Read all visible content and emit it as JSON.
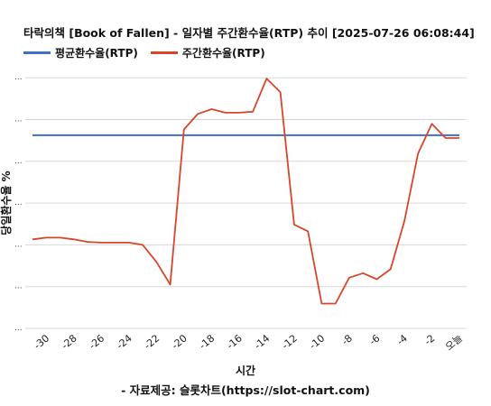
{
  "chart_data": {
    "type": "line",
    "title": "타락의책 [Book of Fallen] - 일자별 주간환수율(RTP) 추이 [2025-07-26 06:08:44]",
    "xlabel": "시간",
    "ylabel": "당일환수율 %",
    "source": "- 자료제공: 슬롯차트(https://slot-chart.com)",
    "x_ticks": [
      "-30",
      "-28",
      "-26",
      "-24",
      "-22",
      "-20",
      "-18",
      "-16",
      "-14",
      "-12",
      "-10",
      "-8",
      "-6",
      "-4",
      "-2",
      "오늘"
    ],
    "y_ticks": [
      "...",
      "...",
      "...",
      "...",
      "...",
      "...",
      "..."
    ],
    "x": [
      -31,
      -30,
      -29,
      -28,
      -27,
      -26,
      -25,
      -24,
      -23,
      -22,
      -21,
      -20,
      -19,
      -18,
      -17,
      -16,
      -15,
      -14,
      -13,
      -12,
      -11,
      -10,
      -9,
      -8,
      -7,
      -6,
      -5,
      -4,
      -3,
      -2,
      -1,
      0
    ],
    "xlim": [
      -31,
      0
    ],
    "ylim": [
      0,
      100
    ],
    "grid": true,
    "legend_position": "top-left",
    "series": [
      {
        "name": "평균환수율(RTP)",
        "color": "#3f6fc6",
        "values": [
          77,
          77,
          77,
          77,
          77,
          77,
          77,
          77,
          77,
          77,
          77,
          77,
          77,
          77,
          77,
          77,
          77,
          77,
          77,
          77,
          77,
          77,
          77,
          77,
          77,
          77,
          77,
          77,
          77,
          77,
          77,
          77
        ]
      },
      {
        "name": "주간환수율(RTP)",
        "color": "#d9452b",
        "values": [
          35.5,
          36.2,
          36.2,
          35.5,
          34.5,
          34.2,
          34.2,
          34.2,
          33.3,
          26.5,
          17.5,
          79.3,
          85.5,
          87.4,
          86.0,
          86.0,
          86.4,
          99.6,
          94.2,
          41.4,
          38.7,
          9.9,
          9.9,
          20.2,
          22.0,
          19.6,
          23.6,
          42.7,
          69.8,
          81.6,
          75.9,
          75.9
        ]
      }
    ]
  }
}
